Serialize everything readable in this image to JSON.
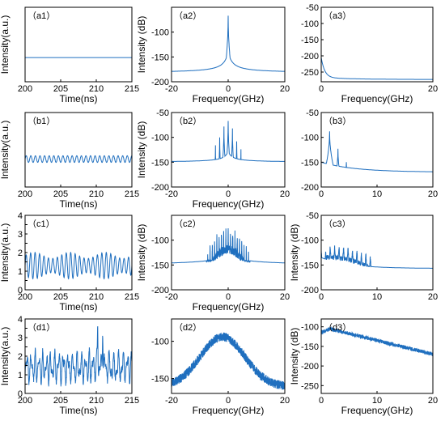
{
  "chart_data": [
    {
      "id": "a1",
      "type": "line",
      "panel_label": "（a1）",
      "xlabel": "Time(ns)",
      "ylabel": "Intensity(a.u.)",
      "xlim": [
        200,
        215
      ],
      "ylim": [
        0,
        4
      ],
      "xticks": [
        200,
        205,
        210,
        215
      ],
      "yticks": [],
      "ytick_labels": [],
      "signal": {
        "kind": "constant",
        "value": 1.3
      }
    },
    {
      "id": "a2",
      "type": "line",
      "panel_label": "（a2）",
      "xlabel": "Frequency(GHz)",
      "ylabel": "Intensity (dB)",
      "xlim": [
        -20,
        20
      ],
      "ylim": [
        -200,
        -50
      ],
      "xticks": [
        -20,
        0,
        20
      ],
      "yticks": [
        -200,
        -150,
        -100
      ],
      "signal": {
        "kind": "spectrum",
        "peaks": [
          {
            "f": 0,
            "db": -67
          }
        ],
        "floor_center": -138,
        "floor_edge": -182,
        "noise": 0
      }
    },
    {
      "id": "a3",
      "type": "line",
      "panel_label": "（a3）",
      "xlabel": "Frequency(GHz)",
      "ylabel": "",
      "xlim": [
        0,
        20
      ],
      "ylim": [
        -280,
        -50
      ],
      "xticks": [
        0,
        20
      ],
      "yticks": [
        -250,
        -200,
        -150,
        -100,
        -50
      ],
      "signal": {
        "kind": "rf_decay",
        "start": -205,
        "end": -267,
        "noise": 0
      }
    },
    {
      "id": "b1",
      "type": "line",
      "panel_label": "（b1）",
      "xlabel": "Time(ns)",
      "ylabel": "Intensity(a.u.)",
      "xlim": [
        200,
        215
      ],
      "ylim": [
        0,
        4
      ],
      "xticks": [
        200,
        205,
        210,
        215
      ],
      "yticks": [],
      "ytick_labels": [],
      "signal": {
        "kind": "periodic",
        "mean": 1.5,
        "amp": 0.18,
        "freq_ghz": 1.55
      }
    },
    {
      "id": "b2",
      "type": "line",
      "panel_label": "（b2）",
      "xlabel": "Frequency(GHz)",
      "ylabel": "Intensity (dB)",
      "xlim": [
        -20,
        20
      ],
      "ylim": [
        -200,
        -50
      ],
      "xticks": [
        -20,
        0,
        20
      ],
      "yticks": [
        -200,
        -150,
        -100,
        -50
      ],
      "signal": {
        "kind": "spectrum",
        "peaks": [
          {
            "f": 0,
            "db": -67
          },
          {
            "f": -1.5,
            "db": -78
          },
          {
            "f": 1.5,
            "db": -82
          },
          {
            "f": -3,
            "db": -100
          },
          {
            "f": 3,
            "db": -108
          },
          {
            "f": -4.5,
            "db": -116
          },
          {
            "f": 4.5,
            "db": -124
          }
        ],
        "floor_center": -128,
        "floor_edge": -150,
        "noise": 0
      }
    },
    {
      "id": "b3",
      "type": "line",
      "panel_label": "（b3）",
      "xlabel": "",
      "ylabel": "",
      "xlim": [
        0,
        20
      ],
      "ylim": [
        -200,
        -50
      ],
      "xticks": [
        0,
        10,
        20
      ],
      "yticks": [
        -200,
        -150,
        -100,
        -50
      ],
      "signal": {
        "kind": "rf_peaks",
        "peaks": [
          {
            "f": 1.5,
            "db": -88
          },
          {
            "f": 3,
            "db": -123
          },
          {
            "f": 4.5,
            "db": -150
          }
        ],
        "start": -150,
        "end": -170,
        "noise": 0
      }
    },
    {
      "id": "c1",
      "type": "line",
      "panel_label": "（c1）",
      "xlabel": "Time(ns)",
      "ylabel": "Intensity(a.u.)",
      "xlim": [
        200,
        215
      ],
      "ylim": [
        0,
        4
      ],
      "xticks": [
        200,
        205,
        210,
        215
      ],
      "yticks": [
        0,
        0.5,
        1,
        1.5,
        2,
        2.5,
        3,
        3.5,
        4
      ],
      "ytick_labels": [
        "0",
        "",
        "1",
        "",
        "2",
        "",
        "3",
        "",
        "4"
      ],
      "signal": {
        "kind": "periodic",
        "mean": 1.3,
        "amp": 0.55,
        "freq_ghz": 1.6,
        "mod_freq_ghz": 0.2,
        "mod_depth": 0.3
      }
    },
    {
      "id": "c2",
      "type": "line",
      "panel_label": "（c2）",
      "xlabel": "Frequency(GHz)",
      "ylabel": "Intensity (dB)",
      "xlim": [
        -20,
        20
      ],
      "ylim": [
        -200,
        -50
      ],
      "xticks": [
        -20,
        0,
        20
      ],
      "yticks": [
        -200,
        -150,
        -100
      ],
      "signal": {
        "kind": "comb",
        "center_db": -75,
        "width": 7,
        "spacing": 0.8,
        "floor_center": -125,
        "floor_edge": -150,
        "noise": 18
      }
    },
    {
      "id": "c3",
      "type": "line",
      "panel_label": "（c3）",
      "xlabel": "",
      "ylabel": "Intensity (dB)",
      "xlim": [
        0,
        20
      ],
      "ylim": [
        -200,
        -50
      ],
      "xticks": [
        0,
        10,
        20
      ],
      "yticks": [
        -200,
        -150,
        -100,
        -50
      ],
      "signal": {
        "kind": "rf_comb",
        "center_db": -110,
        "width": 8,
        "spacing": 0.8,
        "start": -135,
        "end": -157,
        "noise": 10
      }
    },
    {
      "id": "d1",
      "type": "line",
      "panel_label": "（d1）",
      "xlabel": "Time(ns)",
      "ylabel": "Intensity(a.u.)",
      "xlim": [
        200,
        215
      ],
      "ylim": [
        0,
        4
      ],
      "xticks": [
        200,
        205,
        210,
        215
      ],
      "yticks": [
        0,
        0.5,
        1,
        1.5,
        2,
        2.5,
        3,
        3.5,
        4
      ],
      "ytick_labels": [
        "0",
        "",
        "1",
        "",
        "2",
        "",
        "3",
        "",
        "4"
      ],
      "signal": {
        "kind": "chaotic",
        "mean": 1.4,
        "amp": 1.0,
        "spikes": [
          {
            "t": 210.2,
            "v": 3.9
          },
          {
            "t": 210.9,
            "v": 4.0
          }
        ]
      }
    },
    {
      "id": "d2",
      "type": "line",
      "panel_label": "（d2）",
      "xlabel": "Frequency(GHz)",
      "ylabel": "",
      "xlim": [
        -20,
        20
      ],
      "ylim": [
        -170,
        -70
      ],
      "xticks": [
        -20,
        0,
        20
      ],
      "yticks": [
        -150,
        -100
      ],
      "signal": {
        "kind": "broad",
        "center": -2,
        "peak_db": -88,
        "edge_db": -155,
        "noise": 12
      }
    },
    {
      "id": "d3",
      "type": "line",
      "panel_label": "（d3）",
      "xlabel": "Frequency(GHz)",
      "ylabel": "Intensity (dB)",
      "xlim": [
        0,
        20
      ],
      "ylim": [
        -270,
        -80
      ],
      "xticks": [
        0,
        10,
        20
      ],
      "yticks": [
        -250,
        -200,
        -150,
        -100
      ],
      "signal": {
        "kind": "rf_broad",
        "start": -100,
        "peak_at": 1.5,
        "end": -165,
        "noise": 10
      }
    }
  ],
  "colors": {
    "line": "#1f6fbf",
    "axis": "#000000",
    "text": "#000000"
  }
}
